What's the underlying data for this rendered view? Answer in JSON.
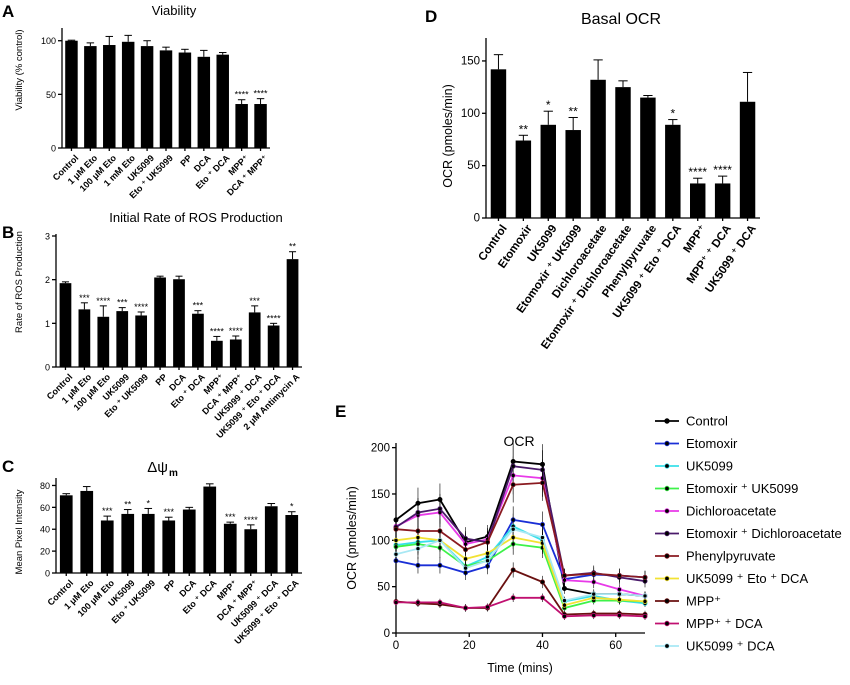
{
  "colors": {
    "Control": "#000000",
    "Etomoxir": "#1a2fd6",
    "UK5099": "#38e0ea",
    "Etomoxir + UK5099": "#3ef24a",
    "Dichloroacetate": "#e83ae8",
    "Etomoxir + Dichloroacetate": "#4a1a6a",
    "Phenylpyruvate": "#8a1a20",
    "UK5099 + Eto + DCA": "#f2e233",
    "MPP+": "#6a1010",
    "MPP+ + DCA": "#c01070",
    "UK5099 + DCA": "#a8e8f4"
  },
  "chart_data": [
    {
      "panel": "A",
      "type": "bar",
      "title": "Viability",
      "xlabel": "",
      "ylabel": "Viability (% control)",
      "ylim": [
        0,
        110
      ],
      "yticks": [
        "0",
        "50",
        "100"
      ],
      "categories": [
        "Control",
        "1 μM Eto",
        "100 μM Eto",
        "1 mM Eto",
        "UK5099",
        "Eto + UK5099",
        "PP",
        "DCA",
        "Eto + DCA",
        "MPP+",
        "DCA + MPP+"
      ],
      "values": [
        100,
        95,
        96,
        99,
        95,
        91,
        89,
        85,
        87,
        41,
        41
      ],
      "errors": [
        0.5,
        3,
        8,
        6,
        5,
        3,
        3,
        6,
        2,
        4,
        5
      ],
      "significance": [
        "",
        "",
        "",
        "",
        "",
        "",
        "",
        "",
        "",
        "****",
        "****"
      ]
    },
    {
      "panel": "B",
      "type": "bar",
      "title": "Initial Rate of ROS Production",
      "xlabel": "",
      "ylabel": "Rate of ROS Production",
      "ylim": [
        0,
        3
      ],
      "yticks": [
        "0",
        "1",
        "2",
        "3"
      ],
      "categories": [
        "Control",
        "1 μM Eto",
        "100 μM Eto",
        "UK5099",
        "Eto + UK5099",
        "PP",
        "DCA",
        "Eto + DCA",
        "MPP+",
        "DCA + MPP+",
        "UK5099 + DCA",
        "UK5099 + Eto + DCA",
        "2 μM Antimycin A"
      ],
      "values": [
        1.92,
        1.32,
        1.15,
        1.28,
        1.18,
        2.05,
        2.01,
        1.22,
        0.6,
        0.63,
        1.25,
        0.95,
        2.47
      ],
      "errors": [
        0.03,
        0.15,
        0.25,
        0.08,
        0.08,
        0.03,
        0.07,
        0.07,
        0.1,
        0.08,
        0.15,
        0.05,
        0.17
      ],
      "significance": [
        "",
        "***",
        "****",
        "***",
        "****",
        "",
        "",
        "***",
        "****",
        "****",
        "***",
        "****",
        "**"
      ]
    },
    {
      "panel": "C",
      "type": "bar",
      "title": "Δψ",
      "title_sub": "m",
      "xlabel": "",
      "ylabel": "Mean Pixel Intensity",
      "ylim": [
        0,
        85
      ],
      "yticks": [
        "0",
        "20",
        "40",
        "60",
        "80"
      ],
      "categories": [
        "Control",
        "1 μM Eto",
        "100 μM Eto",
        "UK5099",
        "Eto + UK5099",
        "PP",
        "DCA",
        "Eto + DCA",
        "MPP+",
        "DCA + MPP+",
        "UK5099 + DCA",
        "UK5099 + Eto + DCA"
      ],
      "values": [
        71,
        75,
        48,
        54,
        54,
        48,
        58,
        79,
        45,
        40,
        61,
        53
      ],
      "errors": [
        1.5,
        4,
        4,
        4,
        5,
        3,
        2,
        2.5,
        1.5,
        4,
        2.5,
        3
      ],
      "significance": [
        "",
        "",
        "***",
        "**",
        "*",
        "***",
        "",
        "",
        "***",
        "****",
        "",
        "*"
      ]
    },
    {
      "panel": "D",
      "type": "bar",
      "title": "Basal OCR",
      "xlabel": "",
      "ylabel": "OCR (pmoles/min)",
      "ylim": [
        0,
        170
      ],
      "yticks": [
        "0",
        "50",
        "100",
        "150"
      ],
      "categories": [
        "Control",
        "Etomoxir",
        "UK5099",
        "Etomoxir + UK5099",
        "Dichloroacetate",
        "Etomoxir + Dichloroacetate",
        "Phenylpyruvate",
        "UK5099 + Eto + DCA",
        "MPP+",
        "MPP+ + DCA",
        "UK5099 + DCA"
      ],
      "values": [
        142,
        74,
        89,
        84,
        132,
        125,
        115,
        89,
        33,
        33,
        111
      ],
      "errors": [
        14,
        5,
        13,
        12,
        19,
        6,
        2,
        5,
        5,
        7,
        28
      ],
      "significance": [
        "",
        "**",
        "*",
        "**",
        "",
        "",
        "",
        "*",
        "****",
        "****",
        ""
      ]
    },
    {
      "panel": "E",
      "type": "line",
      "title": "OCR",
      "xlabel": "Time (mins)",
      "ylabel": "OCR (pmoles/min)",
      "xlim": [
        0,
        68
      ],
      "ylim": [
        0,
        205
      ],
      "xticks": [
        "0",
        "20",
        "40",
        "60"
      ],
      "yticks": [
        "0",
        "50",
        "100",
        "150",
        "200"
      ],
      "x": [
        0,
        6,
        12,
        19,
        25,
        32,
        40,
        46,
        54,
        61,
        68
      ],
      "series": [
        {
          "name": "Control",
          "values": [
            122,
            140,
            144,
            98,
            104,
            185,
            182,
            48,
            42,
            42,
            40
          ]
        },
        {
          "name": "Etomoxir",
          "values": [
            78,
            73,
            73,
            65,
            72,
            122,
            117,
            58,
            63,
            62,
            60
          ]
        },
        {
          "name": "UK5099",
          "values": [
            95,
            98,
            100,
            72,
            82,
            115,
            100,
            34,
            40,
            35,
            32
          ]
        },
        {
          "name": "Etomoxir + UK5099",
          "values": [
            93,
            96,
            92,
            72,
            78,
            96,
            92,
            27,
            35,
            35,
            34
          ]
        },
        {
          "name": "Dichloroacetate",
          "values": [
            115,
            127,
            130,
            96,
            101,
            170,
            167,
            57,
            55,
            47,
            40
          ]
        },
        {
          "name": "Etomoxir + Dichloroacetate",
          "values": [
            114,
            130,
            134,
            102,
            98,
            180,
            176,
            62,
            65,
            60,
            56
          ]
        },
        {
          "name": "Phenylpyruvate",
          "values": [
            112,
            110,
            110,
            90,
            98,
            160,
            162,
            62,
            64,
            62,
            60
          ]
        },
        {
          "name": "UK5099 + Eto + DCA",
          "values": [
            100,
            103,
            100,
            80,
            86,
            103,
            97,
            30,
            38,
            36,
            34
          ]
        },
        {
          "name": "MPP+",
          "values": [
            34,
            32,
            31,
            27,
            27,
            68,
            55,
            20,
            21,
            21,
            20
          ]
        },
        {
          "name": "MPP+ + DCA",
          "values": [
            33,
            33,
            33,
            27,
            28,
            38,
            38,
            18,
            19,
            19,
            18
          ]
        },
        {
          "name": "UK5099 + DCA",
          "values": [
            85,
            91,
            100,
            70,
            78,
            112,
            103,
            35,
            42,
            42,
            40
          ]
        }
      ]
    }
  ]
}
